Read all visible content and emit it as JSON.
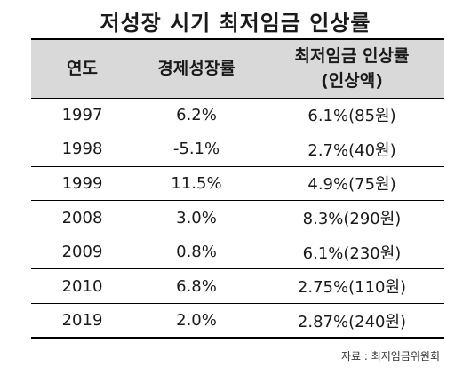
{
  "title": "저성장 시기 최저임금 인상률",
  "table": {
    "headers": [
      "연도",
      "경제성장률",
      "최저임금 인상률",
      "(인상액)"
    ],
    "rows": [
      [
        "1997",
        "6.2%",
        "6.1%(85원)"
      ],
      [
        "1998",
        "-5.1%",
        "2.7%(40원)"
      ],
      [
        "1999",
        "11.5%",
        "4.9%(75원)"
      ],
      [
        "2008",
        "3.0%",
        "8.3%(290원)"
      ],
      [
        "2009",
        "0.8%",
        "6.1%(230원)"
      ],
      [
        "2010",
        "6.8%",
        "2.75%(110원)"
      ],
      [
        "2019",
        "2.0%",
        "2.87%(240원)"
      ]
    ]
  },
  "source": "자료 : 최저임금위원회"
}
